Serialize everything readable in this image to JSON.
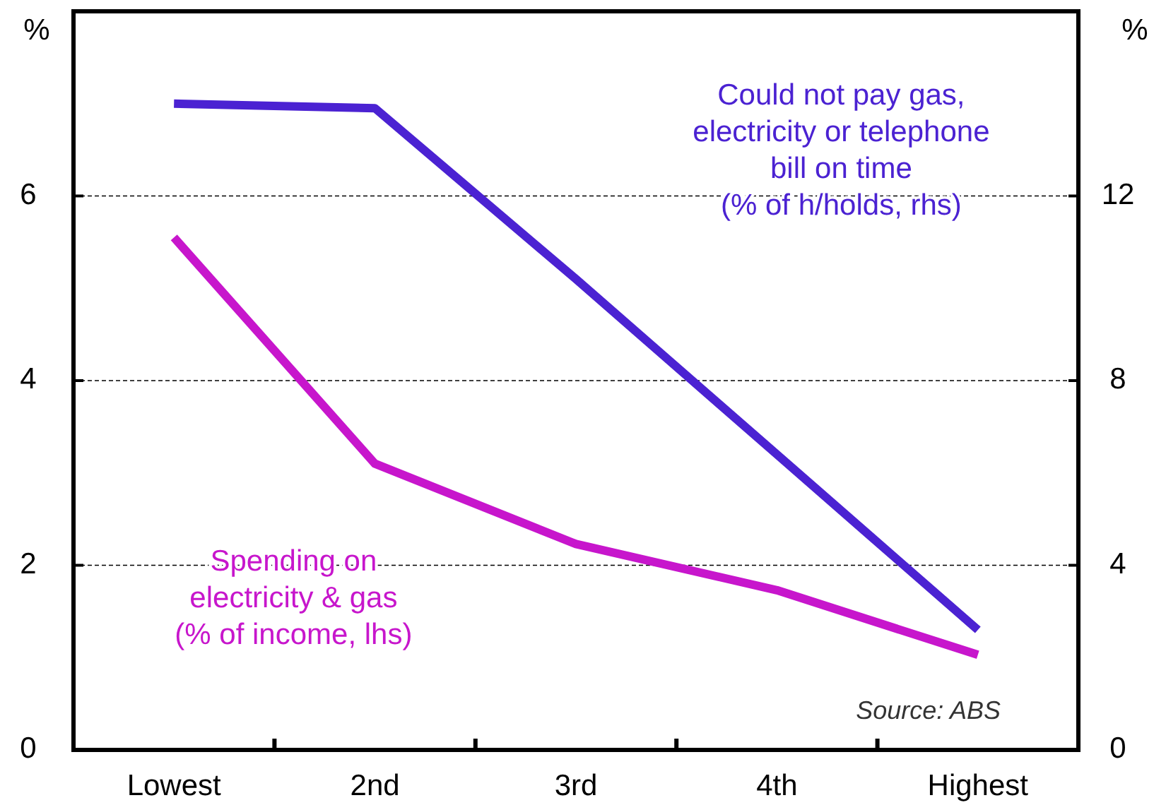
{
  "chart_data": {
    "type": "line",
    "categories": [
      "Lowest",
      "2nd",
      "3rd",
      "4th",
      "Highest"
    ],
    "ylabel": "%",
    "y2label": "%",
    "ylim": [
      0,
      8
    ],
    "yticks": [
      0,
      2,
      4,
      6,
      {
        "value": 8,
        "label": null
      }
    ],
    "y2lim": [
      0,
      16
    ],
    "y2ticks": [
      0,
      4,
      8,
      12,
      {
        "value": 16,
        "label": null
      }
    ],
    "grid": "y",
    "legend": false,
    "line_style": "solid",
    "marker": "none",
    "series": [
      {
        "name": "Could not pay gas, electricity or telephone bill on time (% of h/holds, rhs)",
        "color": "#4b22d2",
        "axis": "y2",
        "values": [
          14.0,
          13.9,
          10.2,
          6.4,
          2.6
        ]
      },
      {
        "name": "Spending on electricity & gas (% of income, lhs)",
        "color": "#c716cc",
        "values": [
          5.55,
          3.1,
          2.23,
          1.73,
          1.03
        ]
      }
    ],
    "annotations": [
      "Source: ABS"
    ]
  }
}
